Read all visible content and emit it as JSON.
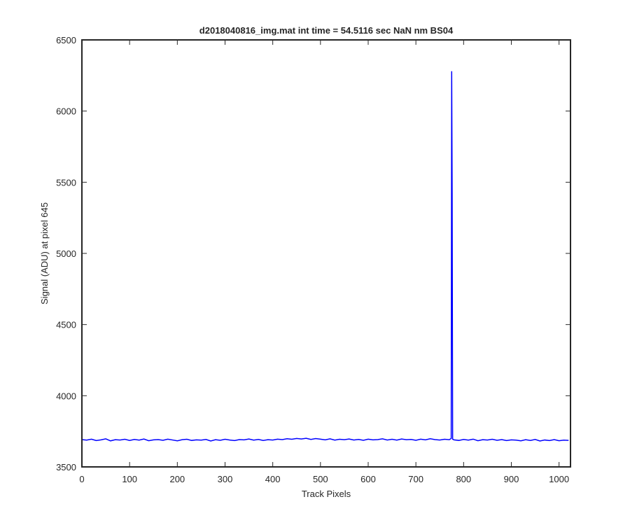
{
  "chart_data": {
    "type": "line",
    "title": "d2018040816_img.mat int time = 54.5116 sec  NaN nm BS04",
    "x_label": "Track Pixels",
    "y_label": "Signal (ADU) at pixel 645",
    "xlim": [
      0,
      1024
    ],
    "ylim": [
      3500,
      6500
    ],
    "xticks": [
      0,
      100,
      200,
      300,
      400,
      500,
      600,
      700,
      800,
      900,
      1000
    ],
    "yticks": [
      3500,
      4000,
      4500,
      5000,
      5500,
      6000,
      6500
    ],
    "x": [
      0,
      10,
      20,
      30,
      40,
      50,
      60,
      70,
      80,
      90,
      100,
      110,
      120,
      130,
      140,
      150,
      160,
      170,
      180,
      190,
      200,
      210,
      220,
      230,
      240,
      250,
      260,
      270,
      280,
      290,
      300,
      310,
      320,
      330,
      340,
      350,
      360,
      370,
      380,
      390,
      400,
      410,
      420,
      430,
      440,
      450,
      460,
      470,
      480,
      490,
      500,
      510,
      520,
      530,
      540,
      550,
      560,
      570,
      580,
      590,
      600,
      610,
      620,
      630,
      640,
      650,
      660,
      670,
      680,
      690,
      700,
      710,
      720,
      730,
      740,
      750,
      760,
      770,
      774,
      775,
      776,
      777,
      780,
      790,
      800,
      810,
      820,
      830,
      840,
      850,
      860,
      870,
      880,
      890,
      900,
      910,
      920,
      930,
      940,
      950,
      960,
      970,
      980,
      990,
      1000,
      1010,
      1020
    ],
    "series": [
      {
        "name": "signal",
        "color": "#0000ff",
        "values": [
          3692,
          3688,
          3695,
          3685,
          3690,
          3697,
          3683,
          3691,
          3689,
          3694,
          3686,
          3693,
          3688,
          3696,
          3684,
          3690,
          3692,
          3687,
          3695,
          3689,
          3683,
          3691,
          3694,
          3686,
          3690,
          3688,
          3693,
          3682,
          3691,
          3687,
          3694,
          3689,
          3685,
          3692,
          3690,
          3696,
          3688,
          3693,
          3686,
          3691,
          3689,
          3695,
          3692,
          3698,
          3694,
          3700,
          3696,
          3701,
          3693,
          3699,
          3695,
          3690,
          3697,
          3688,
          3694,
          3691,
          3696,
          3689,
          3693,
          3687,
          3695,
          3690,
          3692,
          3697,
          3689,
          3694,
          3688,
          3696,
          3691,
          3693,
          3687,
          3695,
          3690,
          3698,
          3692,
          3689,
          3694,
          3691,
          3700,
          6280,
          5430,
          3695,
          3690,
          3686,
          3693,
          3688,
          3695,
          3684,
          3691,
          3689,
          3694,
          3687,
          3692,
          3685,
          3690,
          3688,
          3683,
          3691,
          3686,
          3693,
          3682,
          3689,
          3685,
          3692,
          3684,
          3688,
          3686
        ]
      }
    ]
  }
}
